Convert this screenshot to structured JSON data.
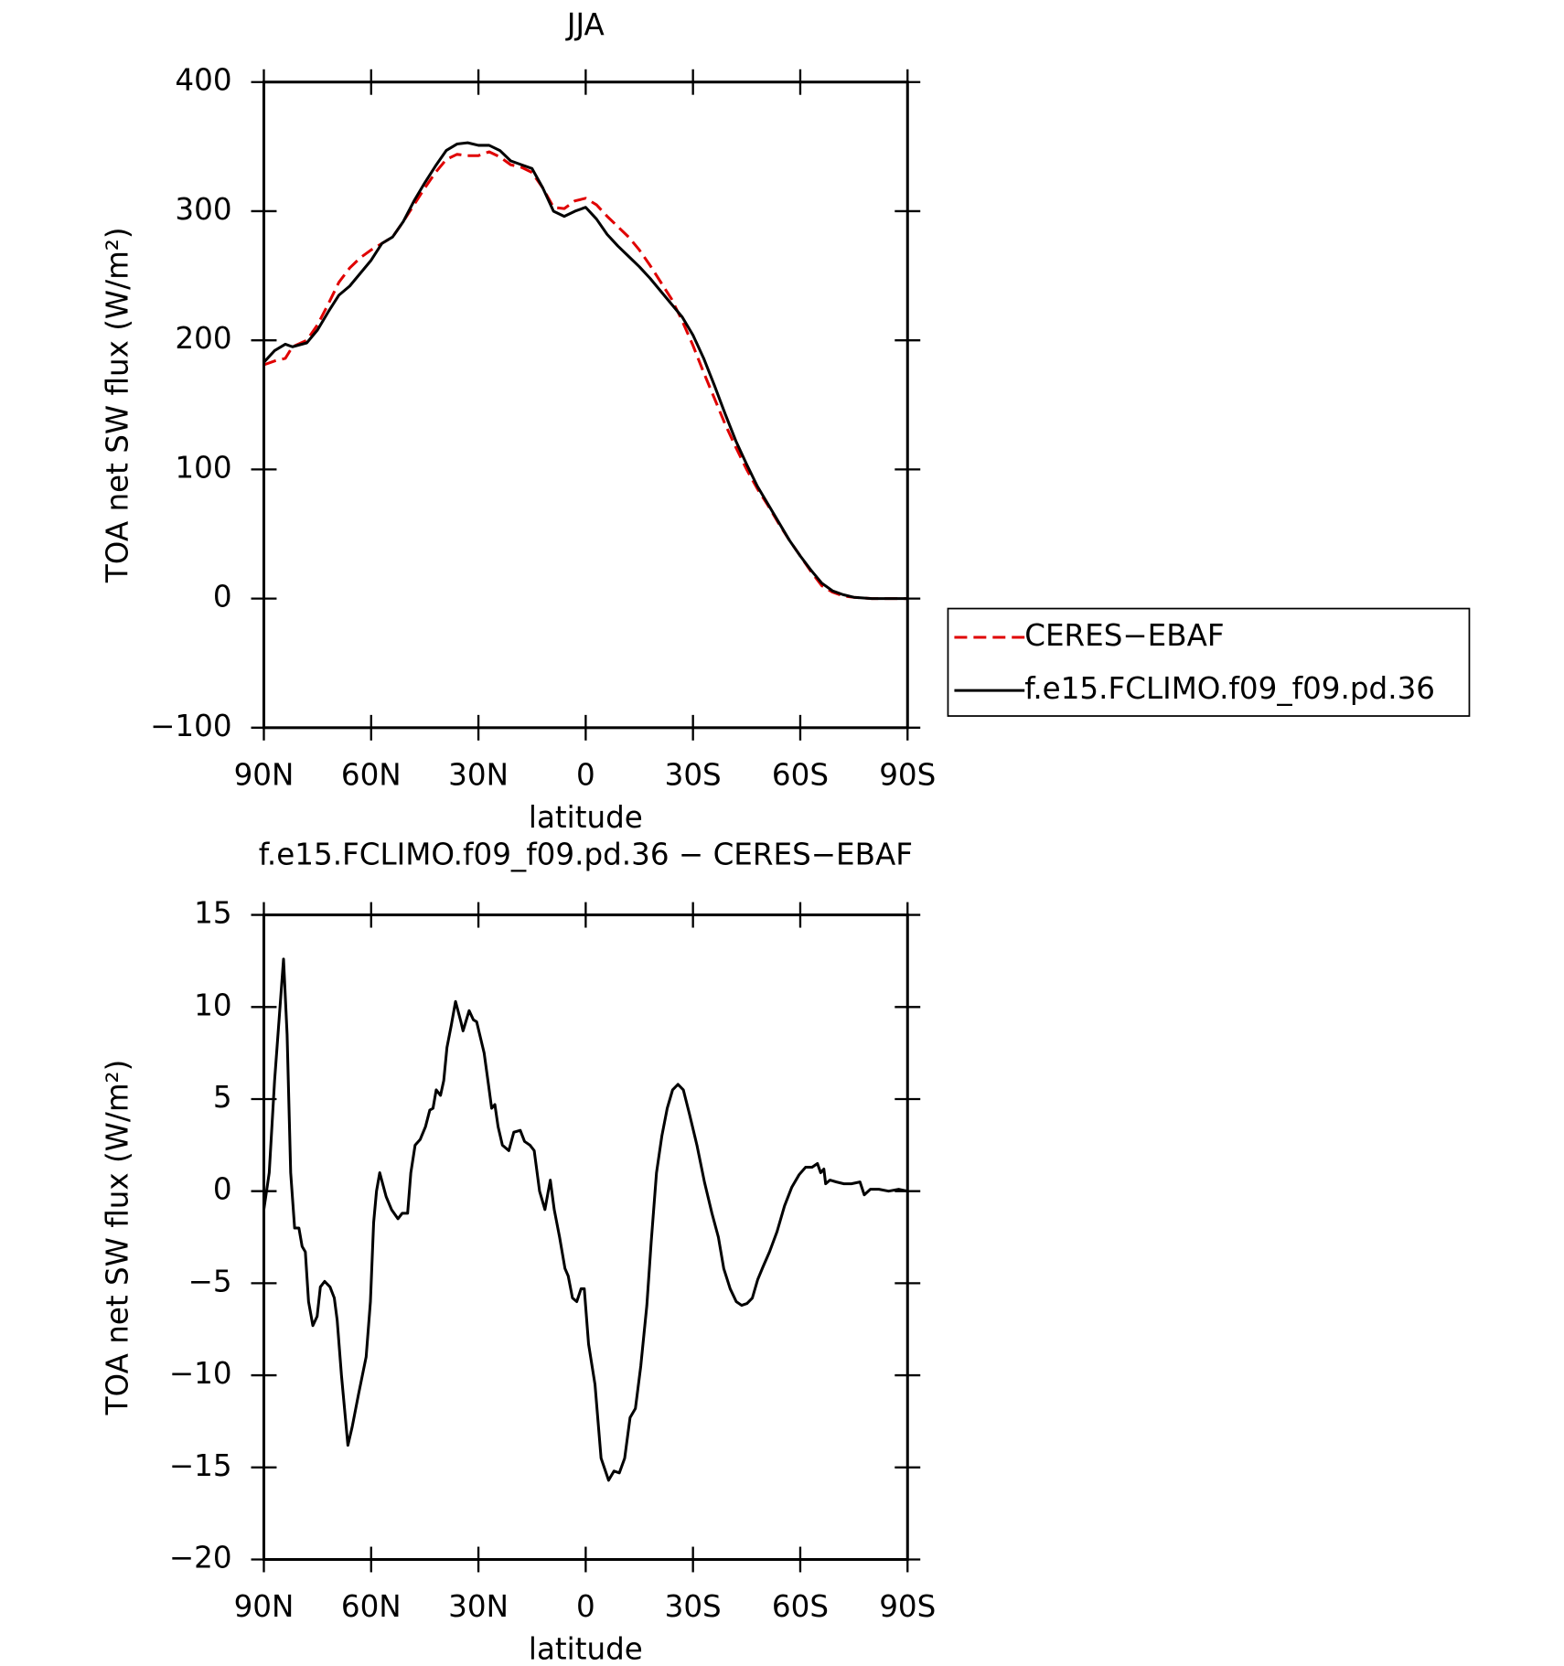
{
  "chart_data": [
    {
      "type": "line",
      "title": "JJA",
      "xlabel": "latitude",
      "ylabel": "TOA net SW flux (W/m²)",
      "xlim": [
        90,
        -90
      ],
      "xticks": [
        {
          "value": 90,
          "label": "90N"
        },
        {
          "value": 60,
          "label": "60N"
        },
        {
          "value": 30,
          "label": "30N"
        },
        0,
        {
          "value": -30,
          "label": "30S"
        },
        {
          "value": -60,
          "label": "60S"
        },
        {
          "value": -90,
          "label": "90S"
        }
      ],
      "ylim": [
        -100,
        400
      ],
      "yticks": [
        {
          "value": -100,
          "label": "−100"
        },
        0,
        100,
        200,
        300,
        400
      ],
      "legend": "right",
      "x": [
        90,
        87,
        84,
        82,
        78,
        75,
        72,
        69,
        66,
        63,
        60,
        57,
        54,
        51,
        48,
        45,
        42,
        39,
        36,
        33,
        30,
        27,
        24,
        21,
        18,
        15,
        12,
        9,
        6,
        3,
        0,
        -3,
        -6,
        -9,
        -12,
        -15,
        -18,
        -21,
        -24,
        -27,
        -30,
        -33,
        -36,
        -39,
        -42,
        -45,
        -48,
        -51,
        -54,
        -57,
        -60,
        -63,
        -66,
        -69,
        -72,
        -75,
        -80,
        -85,
        -90
      ],
      "series": [
        {
          "name": "CERES−EBAF",
          "color": "#e00000",
          "dash": true,
          "values": [
            181,
            184,
            186,
            195,
            200,
            212,
            228,
            245,
            256,
            264,
            270,
            275,
            280,
            292,
            305,
            318,
            330,
            340,
            344,
            343,
            343,
            346,
            342,
            336,
            334,
            330,
            318,
            303,
            302,
            308,
            310,
            305,
            296,
            288,
            280,
            270,
            258,
            245,
            232,
            215,
            196,
            175,
            155,
            135,
            117,
            100,
            85,
            72,
            58,
            45,
            33,
            21,
            10,
            5,
            2,
            1,
            0,
            0,
            0
          ]
        },
        {
          "name": "f.e15.FCLIMO.f09_f09.pd.36",
          "color": "#000000",
          "dash": false,
          "values": [
            183,
            192,
            197,
            195,
            198,
            208,
            222,
            235,
            242,
            252,
            262,
            275,
            280,
            292,
            308,
            322,
            335,
            347,
            352,
            353,
            351,
            351,
            347,
            339,
            336,
            333,
            318,
            300,
            296,
            300,
            303,
            294,
            282,
            273,
            265,
            257,
            248,
            238,
            228,
            218,
            204,
            186,
            165,
            143,
            122,
            104,
            87,
            73,
            59,
            45,
            33,
            22,
            12,
            6,
            3,
            1,
            0,
            0,
            0
          ]
        }
      ]
    },
    {
      "type": "line",
      "title": "f.e15.FCLIMO.f09_f09.pd.36 − CERES−EBAF",
      "xlabel": "latitude",
      "ylabel": "TOA net SW flux (W/m²)",
      "xlim": [
        90,
        -90
      ],
      "xticks": [
        {
          "value": 90,
          "label": "90N"
        },
        {
          "value": 60,
          "label": "60N"
        },
        {
          "value": 30,
          "label": "30N"
        },
        0,
        {
          "value": -30,
          "label": "30S"
        },
        {
          "value": -60,
          "label": "60S"
        },
        {
          "value": -90,
          "label": "90S"
        }
      ],
      "ylim": [
        -20,
        15
      ],
      "yticks": [
        {
          "value": -20,
          "label": "−20"
        },
        {
          "value": -15,
          "label": "−15"
        },
        {
          "value": -10,
          "label": "−10"
        },
        {
          "value": -5,
          "label": "−5"
        },
        0,
        5,
        10,
        15
      ],
      "x": [
        90,
        88.5,
        87,
        84.5,
        83.5,
        82.5,
        81.4,
        80.2,
        79.3,
        78.4,
        77.5,
        76.3,
        75.1,
        74.2,
        73,
        71.5,
        70.3,
        69.5,
        68.3,
        66.5,
        65.3,
        63.5,
        61.4,
        60.2,
        59.3,
        58.5,
        57.6,
        55.8,
        54.3,
        52.5,
        51.3,
        49.8,
        48.9,
        47.7,
        46.3,
        44.8,
        43.6,
        42.7,
        41.8,
        40.6,
        39.7,
        38.8,
        37.6,
        36.4,
        34.9,
        34.3,
        32.6,
        31.4,
        30.5,
        28.4,
        27.2,
        26.3,
        25.4,
        24.5,
        23.3,
        21.5,
        20.1,
        18.3,
        17.1,
        15.6,
        14.4,
        12.9,
        11.4,
        9.9,
        8.8,
        7.3,
        5.8,
        4.9,
        3.7,
        2.5,
        1.3,
        0.4,
        -0.8,
        -2.6,
        -4.3,
        -6.4,
        -7.9,
        -9.4,
        -10.9,
        -12.4,
        -13.9,
        -15.4,
        -17.1,
        -18.3,
        -19.8,
        -21.3,
        -22.8,
        -24.3,
        -25.8,
        -27.3,
        -29,
        -31.1,
        -33.2,
        -35.3,
        -37.1,
        -38.6,
        -40.4,
        -42.1,
        -43.6,
        -45.1,
        -46.6,
        -48.1,
        -49.6,
        -51.4,
        -53.5,
        -55.6,
        -57.6,
        -59.7,
        -61.5,
        -63.3,
        -64.8,
        -65.7,
        -66.6,
        -67.1,
        -68.3,
        -70.1,
        -72.2,
        -74.3,
        -76.7,
        -77.9,
        -79.6,
        -82,
        -84.7,
        -87.6,
        -90
      ],
      "series": [
        {
          "name": "f.e15.FCLIMO.f09_f09.pd.36 − CERES−EBAF",
          "color": "#000000",
          "dash": false,
          "values": [
            -1,
            1,
            6,
            12.6,
            8.5,
            1,
            -2,
            -2,
            -3,
            -3.3,
            -6,
            -7.3,
            -6.8,
            -5.2,
            -4.9,
            -5.2,
            -5.8,
            -7,
            -10,
            -13.8,
            -12.8,
            -11,
            -9,
            -6,
            -1.7,
            0,
            1,
            -0.3,
            -1,
            -1.5,
            -1.2,
            -1.2,
            1,
            2.5,
            2.8,
            3.5,
            4.4,
            4.5,
            5.5,
            5.2,
            6,
            7.8,
            9,
            10.3,
            9.2,
            8.7,
            9.8,
            9.3,
            9.2,
            7.5,
            5.8,
            4.5,
            4.7,
            3.5,
            2.5,
            2.2,
            3.2,
            3.3,
            2.7,
            2.5,
            2.2,
            0,
            -1,
            0.6,
            -1,
            -2.5,
            -4.2,
            -4.6,
            -5.8,
            -6,
            -5.3,
            -5.3,
            -8.3,
            -10.5,
            -14.5,
            -15.7,
            -15.2,
            -15.3,
            -14.5,
            -12.3,
            -11.8,
            -9.5,
            -6.2,
            -2.8,
            1,
            3,
            4.5,
            5.5,
            5.8,
            5.5,
            4.2,
            2.5,
            0.5,
            -1.2,
            -2.5,
            -4.2,
            -5.3,
            -6,
            -6.2,
            -6.1,
            -5.8,
            -4.8,
            -4.1,
            -3.3,
            -2.2,
            -0.8,
            0.2,
            0.9,
            1.3,
            1.3,
            1.5,
            1,
            1.2,
            0.4,
            0.6,
            0.5,
            0.4,
            0.4,
            0.5,
            -0.2,
            0.1,
            0.1,
            0,
            0.1,
            0
          ]
        }
      ]
    }
  ]
}
